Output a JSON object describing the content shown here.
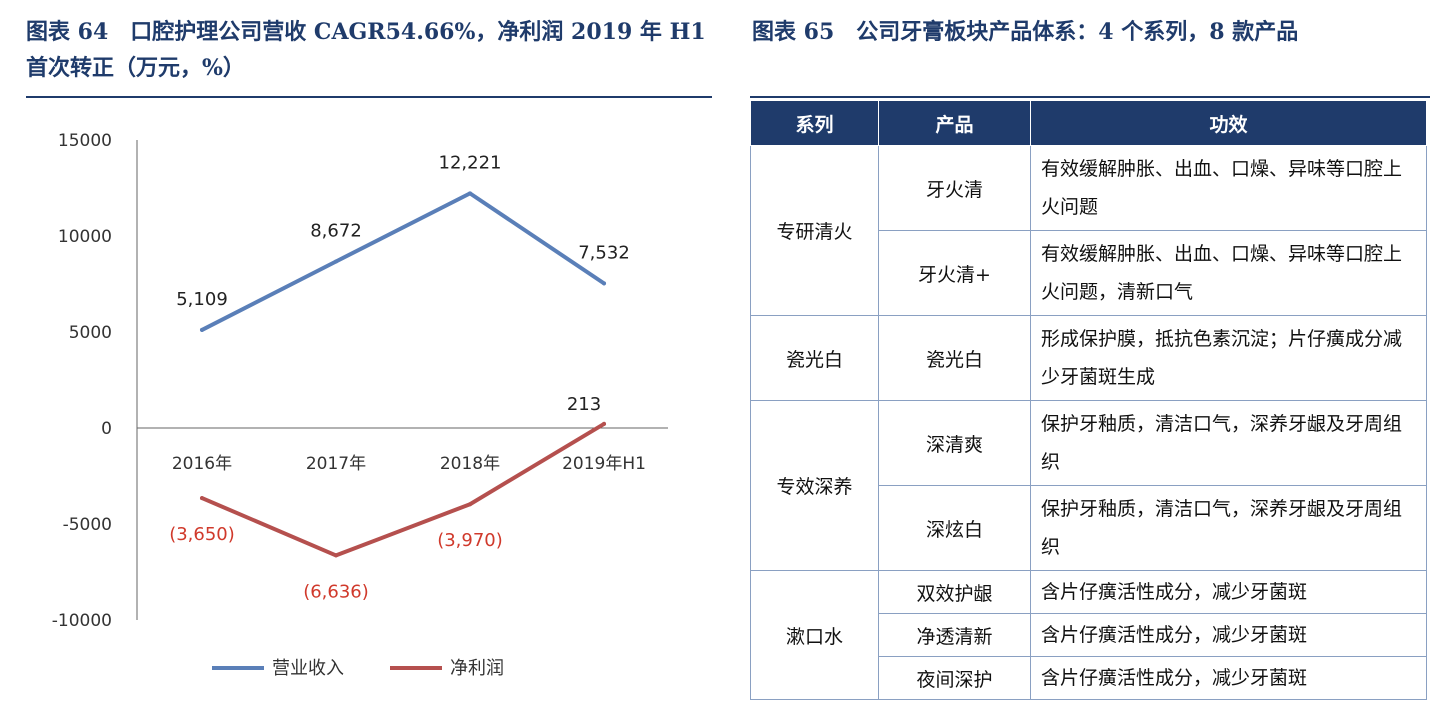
{
  "fig64": {
    "title": "图表 64　口腔护理公司营收 CAGR54.66%，净利润 2019 年 H1 首次转正（万元，%）"
  },
  "fig65": {
    "title": "图表 65　公司牙膏板块产品体系：4 个系列，8 款产品",
    "headers": [
      "系列",
      "产品",
      "功效"
    ],
    "groups": [
      {
        "series": "专研清火",
        "rows": [
          {
            "product": "牙火清",
            "effect": "有效缓解肿胀、出血、口燥、异味等口腔上火问题"
          },
          {
            "product": "牙火清+",
            "effect": "有效缓解肿胀、出血、口燥、异味等口腔上火问题，清新口气"
          }
        ]
      },
      {
        "series": "瓷光白",
        "rows": [
          {
            "product": "瓷光白",
            "effect": "形成保护膜，抵抗色素沉淀；片仔癀成分减少牙菌斑生成"
          }
        ]
      },
      {
        "series": "专效深养",
        "rows": [
          {
            "product": "深清爽",
            "effect": "保护牙釉质，清洁口气，深养牙龈及牙周组织"
          },
          {
            "product": "深炫白",
            "effect": "保护牙釉质，清洁口气，深养牙龈及牙周组织"
          }
        ]
      },
      {
        "series": "漱口水",
        "rows": [
          {
            "product": "双效护龈",
            "effect": "含片仔癀活性成分，减少牙菌斑"
          },
          {
            "product": "净透清新",
            "effect": "含片仔癀活性成分，减少牙菌斑"
          },
          {
            "product": "夜间深护",
            "effect": "含片仔癀活性成分，减少牙菌斑"
          }
        ]
      }
    ]
  },
  "chart_data": {
    "type": "line",
    "categories": [
      "2016年",
      "2017年",
      "2018年",
      "2019年H1"
    ],
    "ylim": [
      -10000,
      15000
    ],
    "yticks": [
      "15000",
      "10000",
      "5000",
      "0",
      "-5000",
      "-10000"
    ],
    "grid": false,
    "legend_position": "bottom",
    "series": [
      {
        "name": "营业收入",
        "values": [
          5109,
          8672,
          12221,
          7532
        ],
        "labels": [
          "5,109",
          "8,672",
          "12,221",
          "7,532"
        ],
        "color": "#5a7fb8"
      },
      {
        "name": "净利润",
        "values": [
          -3650,
          -6636,
          -3970,
          213
        ],
        "labels": [
          "(3,650)",
          "(6,636)",
          "(3,970)",
          "213"
        ],
        "color": "#b5504e"
      }
    ],
    "negative_label_color": "#d0392b"
  }
}
